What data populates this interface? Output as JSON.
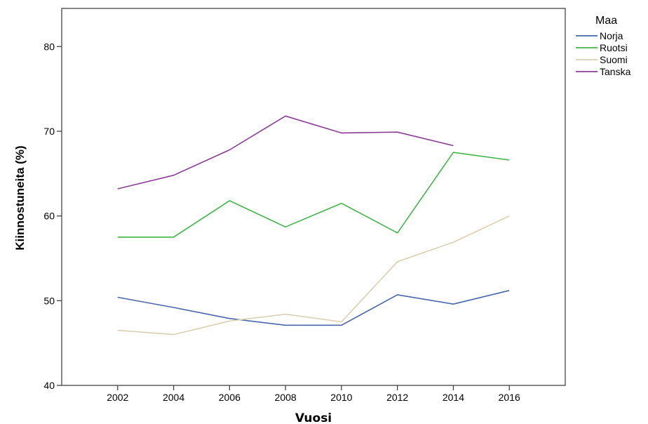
{
  "chart_data": {
    "type": "line",
    "xlabel": "Vuosi",
    "ylabel": "Kiinnostuneita (%)",
    "x": [
      2002,
      2004,
      2006,
      2008,
      2010,
      2012,
      2014,
      2016
    ],
    "x_tick_labels": [
      "2002",
      "2004",
      "2006",
      "2008",
      "2010",
      "2012",
      "2014",
      "2016"
    ],
    "xlim": [
      2000,
      2018
    ],
    "ylim": [
      40,
      84.5
    ],
    "y_ticks": [
      40,
      50,
      60,
      70,
      80
    ],
    "y_tick_labels": [
      "40",
      "50",
      "60",
      "70",
      "80"
    ],
    "grid": false,
    "legend": {
      "title": "Maa",
      "placement": "right"
    },
    "series": [
      {
        "name": "Norja",
        "color": "#4a66ac",
        "values": [
          50.4,
          49.2,
          47.9,
          47.1,
          47.1,
          50.7,
          49.6,
          51.2
        ]
      },
      {
        "name": "Ruotsi",
        "color": "#40b54a",
        "values": [
          57.5,
          57.5,
          61.8,
          58.7,
          61.5,
          58.0,
          67.5,
          66.6
        ]
      },
      {
        "name": "Suomi",
        "color": "#d8d0b0",
        "values": [
          46.5,
          46.0,
          47.6,
          48.4,
          47.5,
          54.6,
          56.9,
          60.0
        ]
      },
      {
        "name": "Tanska",
        "color": "#8b3d96",
        "values": [
          63.2,
          64.8,
          67.8,
          71.8,
          69.8,
          69.9,
          68.3,
          null
        ]
      }
    ]
  }
}
